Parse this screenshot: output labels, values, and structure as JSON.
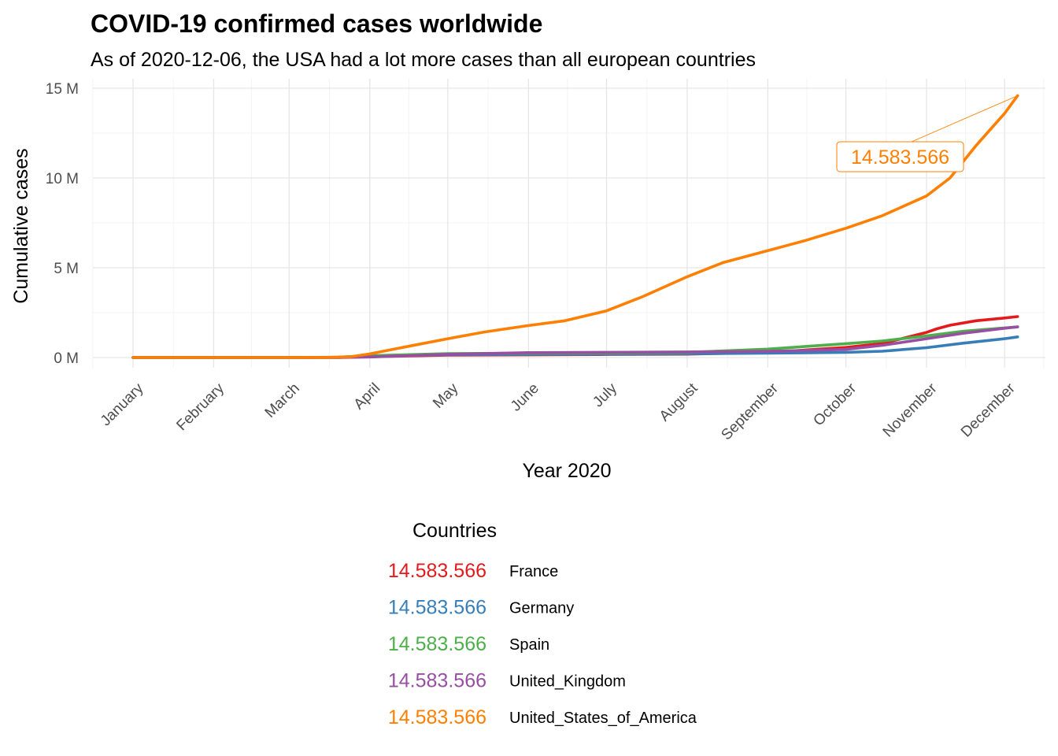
{
  "chart_data": {
    "type": "line",
    "title": "COVID-19 confirmed cases worldwide",
    "subtitle": "As of 2020-12-06, the USA had a lot more cases than all european countries",
    "xlabel": "Year 2020",
    "ylabel": "Cumulative cases",
    "x_ticks": [
      "January",
      "February",
      "March",
      "April",
      "May",
      "June",
      "July",
      "August",
      "September",
      "October",
      "November",
      "December"
    ],
    "y_ticks": [
      "0 M",
      "5 M",
      "10 M",
      "15 M"
    ],
    "ylim": [
      0,
      15
    ],
    "y_unit": "million cases",
    "grid": true,
    "legend_title": "Countries",
    "legend_position": "bottom",
    "legend_key_label": "14.583.566",
    "callout": {
      "label": "14.583.566",
      "series": "United_States_of_America",
      "date": "2020-12-06",
      "value": 14.583566
    },
    "series": [
      {
        "name": "France",
        "color": "#e41a1c",
        "points": [
          [
            "2020-01-01",
            0
          ],
          [
            "2020-03-01",
            0
          ],
          [
            "2020-03-20",
            0.01
          ],
          [
            "2020-04-01",
            0.05
          ],
          [
            "2020-05-01",
            0.13
          ],
          [
            "2020-06-01",
            0.15
          ],
          [
            "2020-07-01",
            0.17
          ],
          [
            "2020-08-01",
            0.19
          ],
          [
            "2020-09-01",
            0.28
          ],
          [
            "2020-10-01",
            0.56
          ],
          [
            "2020-10-15",
            0.78
          ],
          [
            "2020-11-01",
            1.4
          ],
          [
            "2020-11-05",
            1.6
          ],
          [
            "2020-11-10",
            1.8
          ],
          [
            "2020-11-20",
            2.05
          ],
          [
            "2020-12-01",
            2.2
          ],
          [
            "2020-12-06",
            2.28
          ]
        ]
      },
      {
        "name": "Germany",
        "color": "#377eb8",
        "points": [
          [
            "2020-01-01",
            0
          ],
          [
            "2020-03-01",
            0
          ],
          [
            "2020-03-20",
            0.01
          ],
          [
            "2020-04-01",
            0.07
          ],
          [
            "2020-05-01",
            0.16
          ],
          [
            "2020-06-01",
            0.18
          ],
          [
            "2020-07-01",
            0.19
          ],
          [
            "2020-08-01",
            0.21
          ],
          [
            "2020-09-01",
            0.24
          ],
          [
            "2020-10-01",
            0.29
          ],
          [
            "2020-10-15",
            0.35
          ],
          [
            "2020-11-01",
            0.55
          ],
          [
            "2020-11-15",
            0.8
          ],
          [
            "2020-12-01",
            1.05
          ],
          [
            "2020-12-06",
            1.15
          ]
        ]
      },
      {
        "name": "Spain",
        "color": "#4daf4a",
        "points": [
          [
            "2020-01-01",
            0
          ],
          [
            "2020-03-01",
            0
          ],
          [
            "2020-03-20",
            0.02
          ],
          [
            "2020-04-01",
            0.1
          ],
          [
            "2020-05-01",
            0.22
          ],
          [
            "2020-06-01",
            0.24
          ],
          [
            "2020-07-01",
            0.25
          ],
          [
            "2020-08-01",
            0.29
          ],
          [
            "2020-09-01",
            0.47
          ],
          [
            "2020-10-01",
            0.77
          ],
          [
            "2020-10-15",
            0.92
          ],
          [
            "2020-11-01",
            1.2
          ],
          [
            "2020-11-15",
            1.46
          ],
          [
            "2020-12-01",
            1.65
          ],
          [
            "2020-12-06",
            1.7
          ]
        ]
      },
      {
        "name": "United_Kingdom",
        "color": "#984ea3",
        "points": [
          [
            "2020-01-01",
            0
          ],
          [
            "2020-03-01",
            0
          ],
          [
            "2020-03-20",
            0.005
          ],
          [
            "2020-04-01",
            0.03
          ],
          [
            "2020-05-01",
            0.18
          ],
          [
            "2020-06-01",
            0.27
          ],
          [
            "2020-07-01",
            0.29
          ],
          [
            "2020-08-01",
            0.31
          ],
          [
            "2020-09-01",
            0.34
          ],
          [
            "2020-10-01",
            0.45
          ],
          [
            "2020-10-15",
            0.68
          ],
          [
            "2020-11-01",
            1.05
          ],
          [
            "2020-11-15",
            1.35
          ],
          [
            "2020-12-01",
            1.63
          ],
          [
            "2020-12-06",
            1.71
          ]
        ]
      },
      {
        "name": "United_States_of_America",
        "color": "#ff7f00",
        "points": [
          [
            "2020-01-01",
            0
          ],
          [
            "2020-03-01",
            0
          ],
          [
            "2020-03-15",
            0.003
          ],
          [
            "2020-03-25",
            0.05
          ],
          [
            "2020-04-01",
            0.2
          ],
          [
            "2020-04-15",
            0.6
          ],
          [
            "2020-05-01",
            1.05
          ],
          [
            "2020-05-15",
            1.42
          ],
          [
            "2020-06-01",
            1.78
          ],
          [
            "2020-06-15",
            2.05
          ],
          [
            "2020-07-01",
            2.6
          ],
          [
            "2020-07-15",
            3.4
          ],
          [
            "2020-08-01",
            4.5
          ],
          [
            "2020-08-15",
            5.3
          ],
          [
            "2020-09-01",
            5.95
          ],
          [
            "2020-09-15",
            6.5
          ],
          [
            "2020-10-01",
            7.2
          ],
          [
            "2020-10-15",
            7.9
          ],
          [
            "2020-11-01",
            9.0
          ],
          [
            "2020-11-10",
            10.0
          ],
          [
            "2020-11-20",
            11.8
          ],
          [
            "2020-12-01",
            13.6
          ],
          [
            "2020-12-06",
            14.583566
          ]
        ]
      }
    ]
  }
}
